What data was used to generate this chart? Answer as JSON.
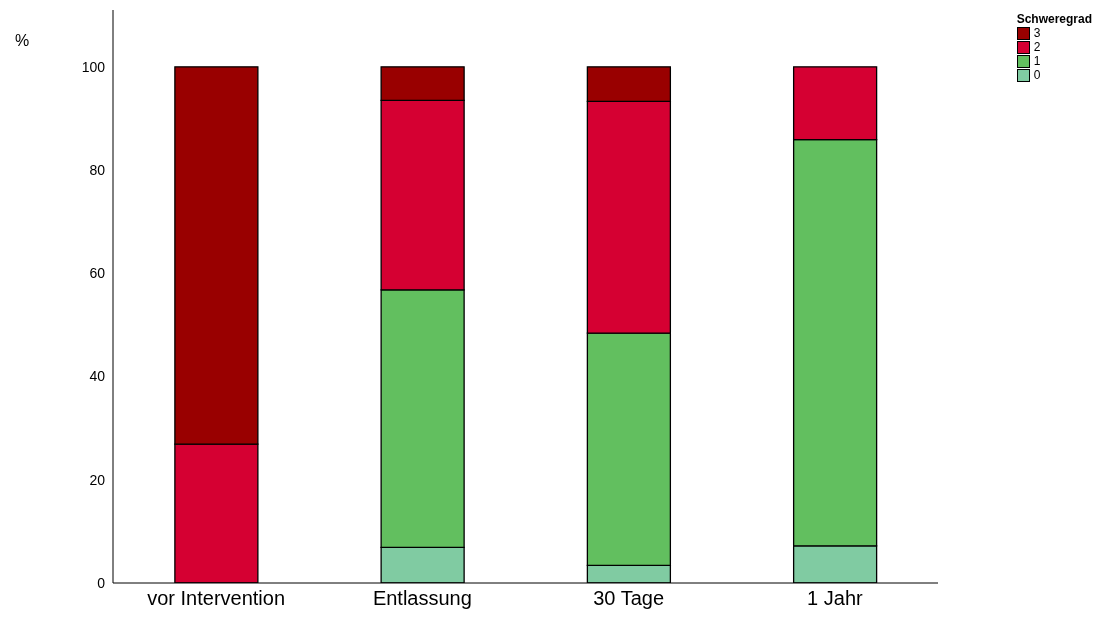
{
  "chart_data": {
    "type": "bar",
    "ylabel": "%",
    "legend_title": "Schweregrad",
    "categories": [
      "vor Intervention",
      "Entlassung",
      "30 Tage",
      "1 Jahr"
    ],
    "stacked": true,
    "series": [
      {
        "name": "0",
        "color": "#80cba2",
        "values": [
          0,
          6.9,
          3.4,
          7.2
        ]
      },
      {
        "name": "1",
        "color": "#62bf5f",
        "values": [
          0,
          49.9,
          45.0,
          78.7
        ]
      },
      {
        "name": "2",
        "color": "#d50032",
        "values": [
          26.9,
          36.7,
          44.9,
          14.1
        ]
      },
      {
        "name": "3",
        "color": "#990000",
        "values": [
          73.1,
          6.5,
          6.7,
          0
        ]
      }
    ],
    "ylim": [
      0,
      111
    ],
    "yticks": [
      0,
      20,
      40,
      60,
      80,
      100
    ],
    "grid": false,
    "legend": "top right"
  }
}
